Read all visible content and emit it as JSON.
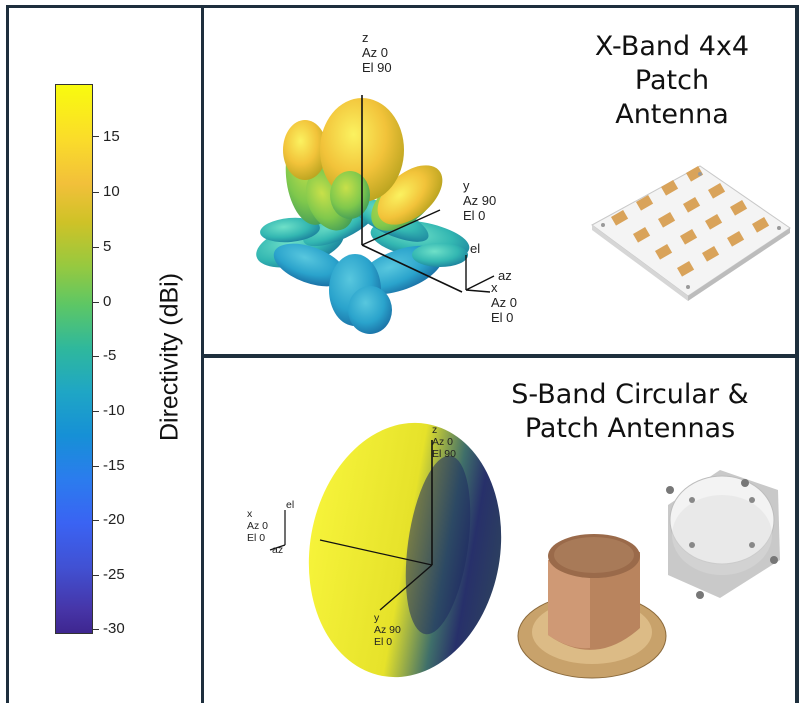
{
  "colorbar": {
    "label": "Directivity (dBi)",
    "ticks": [
      "15",
      "10",
      "5",
      "0",
      "-5",
      "-10",
      "-15",
      "-20",
      "-25",
      "-30"
    ],
    "colormap": [
      "#f9fb0e",
      "#fadc2a",
      "#97c93f",
      "#2fb89c",
      "#1690d6",
      "#3a63f3",
      "#3e2690"
    ]
  },
  "xband": {
    "title_line1": "X-Band 4x4",
    "title_line2": "Patch",
    "title_line3": "Antenna",
    "z_label": [
      "z",
      "Az 0",
      "El 90"
    ],
    "y_label": [
      "y",
      "Az 90",
      "El 0"
    ],
    "x_label": [
      "x",
      "Az 0",
      "El 0"
    ],
    "el_label": "el",
    "az_label": "az"
  },
  "sband": {
    "title_line1": "S-Band Circular &",
    "title_line2": "Patch Antennas",
    "z_label": [
      "z",
      "Az 0",
      "El 90"
    ],
    "x_label": [
      "x",
      "Az 0",
      "El 0"
    ],
    "y_label": [
      "y",
      "Az 90",
      "El 0"
    ],
    "el_label": "el",
    "az_label": "az"
  }
}
